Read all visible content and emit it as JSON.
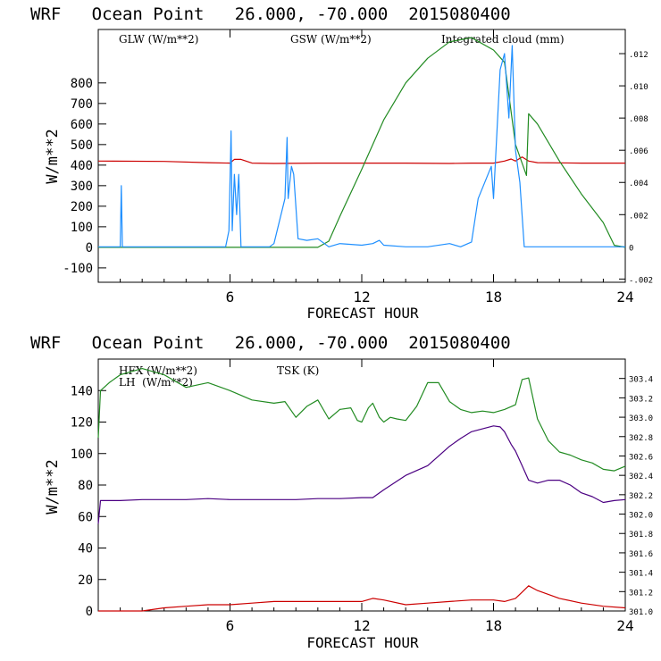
{
  "colors": {
    "red": "#cc0000",
    "green": "#228b22",
    "blue": "#1e8fff",
    "purple": "#4b0082",
    "axis": "#000000"
  },
  "chart_data": [
    {
      "type": "line",
      "title": "WRF   Ocean Point   26.000, -70.000  2015080400",
      "xlabel": "FORECAST HOUR",
      "ylabel": "W/m**2",
      "xlim": [
        0,
        24
      ],
      "ylim": [
        -170,
        1060
      ],
      "y2lim": [
        -0.0022,
        0.0135
      ],
      "xticks": [
        "6",
        "12",
        "18",
        "24"
      ],
      "yticks": [
        "-100",
        "0",
        "100",
        "200",
        "300",
        "400",
        "500",
        "600",
        "700",
        "800"
      ],
      "y2ticks": [
        "-.002",
        "0",
        ".002",
        ".004",
        ".006",
        ".008",
        ".010",
        ".012"
      ],
      "legend": [
        "GLW (W/m**2)",
        "GSW (W/m**2)",
        "Integrated cloud (mm)"
      ],
      "series": [
        {
          "name": "GLW (W/m**2)",
          "color": "red",
          "axis": "left",
          "x": [
            0,
            3,
            5,
            6,
            6.2,
            6.5,
            7,
            8,
            10,
            12,
            14,
            16,
            17,
            18,
            18.5,
            18.8,
            19,
            19.3,
            19.6,
            20,
            22,
            24
          ],
          "values": [
            420,
            418,
            412,
            410,
            428,
            428,
            410,
            408,
            410,
            410,
            410,
            408,
            410,
            410,
            420,
            430,
            420,
            440,
            420,
            412,
            410,
            410
          ]
        },
        {
          "name": "GSW (W/m**2)",
          "color": "green",
          "axis": "left",
          "x": [
            0,
            10,
            10.5,
            11,
            12,
            13,
            14,
            15,
            16,
            17,
            18,
            18.5,
            19,
            19.5,
            19.6,
            20,
            21,
            22,
            23,
            23.5,
            24
          ],
          "values": [
            0,
            0,
            30,
            150,
            380,
            620,
            800,
            920,
            1000,
            1020,
            960,
            900,
            500,
            350,
            650,
            600,
            420,
            260,
            120,
            10,
            0
          ]
        },
        {
          "name": "Integrated cloud (mm)",
          "color": "blue",
          "axis": "right",
          "x": [
            0,
            1,
            1.05,
            1.1,
            1.2,
            5.8,
            5.95,
            6.05,
            6.1,
            6.2,
            6.3,
            6.4,
            6.5,
            7.8,
            8,
            8.5,
            8.6,
            8.65,
            8.8,
            8.9,
            9.1,
            9.5,
            10,
            10.3,
            10.5,
            11,
            12,
            12.5,
            12.8,
            13,
            14,
            15,
            16,
            16.5,
            17,
            17.3,
            17.6,
            17.9,
            18,
            18.3,
            18.5,
            18.7,
            18.85,
            19,
            19.2,
            19.4,
            20,
            24
          ],
          "values": [
            0,
            0,
            0.0038,
            0,
            0,
            0,
            0.001,
            0.0072,
            0.001,
            0.0045,
            0.002,
            0.0045,
            0,
            0,
            0.0002,
            0.003,
            0.0068,
            0.003,
            0.005,
            0.0045,
            0.0005,
            0.0004,
            0.0005,
            0.0002,
            0,
            0.0002,
            0.0001,
            0.0002,
            0.0004,
            0.0001,
            0,
            0,
            0.0002,
            0,
            0.0003,
            0.003,
            0.004,
            0.005,
            0.003,
            0.011,
            0.012,
            0.008,
            0.0125,
            0.006,
            0.004,
            0,
            0,
            0
          ]
        }
      ]
    },
    {
      "type": "line",
      "title": "WRF   Ocean Point   26.000, -70.000  2015080400",
      "xlabel": "FORECAST HOUR",
      "ylabel": "W/m**2",
      "xlim": [
        0,
        24
      ],
      "ylim": [
        0,
        160
      ],
      "y2lim": [
        301.0,
        303.6
      ],
      "xticks": [
        "6",
        "12",
        "18",
        "24"
      ],
      "yticks": [
        "0",
        "20",
        "40",
        "60",
        "80",
        "100",
        "120",
        "140"
      ],
      "y2ticks": [
        "301.0",
        "301.2",
        "301.4",
        "301.6",
        "301.8",
        "302.0",
        "302.2",
        "302.4",
        "302.6",
        "302.8",
        "303.0",
        "303.2",
        "303.4"
      ],
      "legend": [
        "HFX (W/m**2)",
        "LH  (W/m**2)",
        "TSK (K)"
      ],
      "series": [
        {
          "name": "HFX (W/m**2)",
          "color": "red",
          "axis": "left",
          "x": [
            0,
            1,
            2,
            3,
            4,
            5,
            6,
            7,
            8,
            9,
            10,
            11,
            12,
            12.5,
            13,
            14,
            15,
            16,
            17,
            18,
            18.5,
            19,
            19.3,
            19.6,
            20,
            21,
            22,
            23,
            24
          ],
          "values": [
            0,
            0,
            0,
            2,
            3,
            4,
            4,
            5,
            6,
            6,
            6,
            6,
            6,
            8,
            7,
            4,
            5,
            6,
            7,
            7,
            6,
            8,
            12,
            16,
            13,
            8,
            5,
            3,
            2
          ]
        },
        {
          "name": "LH  (W/m**2)",
          "color": "green",
          "axis": "left",
          "x": [
            0,
            0.1,
            0.5,
            1,
            2,
            3,
            4,
            5,
            6,
            7,
            8,
            8.5,
            9,
            9.5,
            10,
            10.5,
            11,
            11.5,
            11.8,
            12,
            12.3,
            12.5,
            12.8,
            13,
            13.3,
            13.6,
            14,
            14.5,
            15,
            15.5,
            16,
            16.5,
            17,
            17.5,
            18,
            18.5,
            19,
            19.3,
            19.6,
            20,
            20.5,
            21,
            21.5,
            22,
            22.5,
            23,
            23.5,
            24
          ],
          "values": [
            110,
            140,
            145,
            150,
            154,
            150,
            142,
            145,
            140,
            134,
            132,
            133,
            123,
            130,
            134,
            122,
            128,
            129,
            121,
            120,
            129,
            132,
            123,
            120,
            123,
            122,
            121,
            130,
            145,
            145,
            133,
            128,
            126,
            127,
            126,
            128,
            131,
            147,
            148,
            122,
            108,
            101,
            99,
            96,
            94,
            90,
            89,
            92
          ]
        },
        {
          "name": "TSK (K)",
          "color": "purple",
          "axis": "right",
          "x": [
            0,
            0.1,
            1,
            2,
            3,
            4,
            5,
            6,
            7,
            8,
            9,
            10,
            11,
            12,
            12.5,
            13,
            14,
            15,
            16,
            16.5,
            17,
            17.5,
            18,
            18.3,
            18.5,
            18.8,
            19,
            19.3,
            19.6,
            20,
            20.5,
            21,
            21.5,
            22,
            22.5,
            23,
            23.5,
            24
          ],
          "values": [
            301.9,
            302.14,
            302.14,
            302.15,
            302.15,
            302.15,
            302.16,
            302.15,
            302.15,
            302.15,
            302.15,
            302.16,
            302.16,
            302.17,
            302.17,
            302.25,
            302.4,
            302.5,
            302.7,
            302.78,
            302.85,
            302.88,
            302.91,
            302.9,
            302.85,
            302.72,
            302.65,
            302.5,
            302.35,
            302.32,
            302.35,
            302.35,
            302.3,
            302.22,
            302.18,
            302.12,
            302.14,
            302.15
          ]
        }
      ]
    }
  ]
}
